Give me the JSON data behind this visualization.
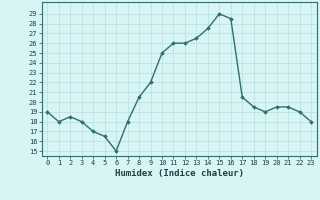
{
  "x": [
    0,
    1,
    2,
    3,
    4,
    5,
    6,
    7,
    8,
    9,
    10,
    11,
    12,
    13,
    14,
    15,
    16,
    17,
    18,
    19,
    20,
    21,
    22,
    23
  ],
  "y": [
    19,
    18,
    18.5,
    18,
    17,
    16.5,
    15,
    18,
    20.5,
    22,
    25,
    26,
    26,
    26.5,
    27.5,
    29,
    28.5,
    20.5,
    19.5,
    19,
    19.5,
    19.5,
    19,
    18
  ],
  "line_color": "#2d7070",
  "marker": "D",
  "markersize": 1.8,
  "linewidth": 1.0,
  "xlabel": "Humidex (Indice chaleur)",
  "xlabel_fontsize": 6.5,
  "xtick_labels": [
    "0",
    "1",
    "2",
    "3",
    "4",
    "5",
    "6",
    "7",
    "8",
    "9",
    "10",
    "11",
    "12",
    "13",
    "14",
    "15",
    "16",
    "17",
    "18",
    "19",
    "20",
    "21",
    "22",
    "23"
  ],
  "ytick_min": 15,
  "ytick_max": 29,
  "ytick_step": 1,
  "bg_color": "#d8f5f5",
  "grid_color": "#b8dede",
  "xlim": [
    -0.5,
    23.5
  ],
  "ylim": [
    14.5,
    30.2
  ],
  "tick_fontsize": 5.0
}
